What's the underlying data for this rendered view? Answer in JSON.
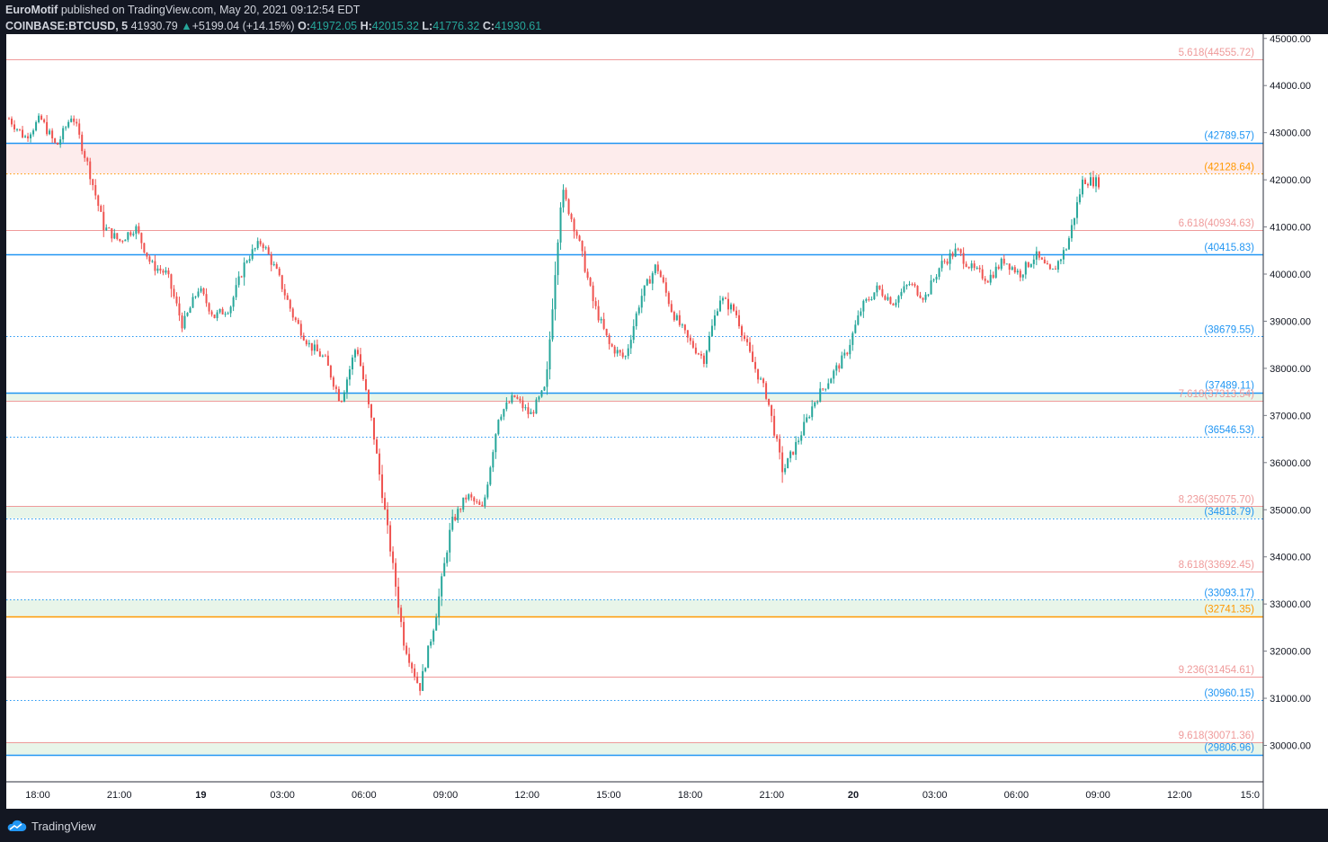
{
  "header": {
    "author": "EuroMotif",
    "published_text": "published on TradingView.com, May 20, 2021 09:12:54 EDT",
    "symbol": "COINBASE:BTCUSD, 5",
    "last_price": "41930.79",
    "change": "+5199.04 (+14.15%)",
    "open_label": "O:",
    "open": "41972.05",
    "high_label": "H:",
    "high": "42015.32",
    "low_label": "L:",
    "low": "41776.32",
    "close_label": "C:",
    "close": "41930.61"
  },
  "footer": {
    "brand": "TradingView"
  },
  "colors": {
    "background": "#131722",
    "plot_background": "#ffffff",
    "up_candle": "#26a69a",
    "down_candle": "#ef5350",
    "blue_level": "#2196f3",
    "orange_level": "#ff9800",
    "red_level": "#ef9a9a",
    "zone_green": "#e8f5e9",
    "zone_red": "#fdecec"
  },
  "chart_data": {
    "type": "candlestick",
    "timeframe": "5",
    "y_axis": {
      "range": [
        29800,
        45000
      ],
      "ticks": [
        "30000.00",
        "31000.00",
        "32000.00",
        "33000.00",
        "34000.00",
        "35000.00",
        "36000.00",
        "37000.00",
        "38000.00",
        "39000.00",
        "40000.00",
        "41000.00",
        "42000.00",
        "43000.00",
        "44000.00",
        "45000.00"
      ]
    },
    "x_axis": {
      "ticks": [
        "18:00",
        "21:00",
        "19",
        "03:00",
        "06:00",
        "09:00",
        "12:00",
        "15:00",
        "18:00",
        "21:00",
        "20",
        "03:00",
        "06:00",
        "09:00",
        "12:00",
        "15:0"
      ]
    },
    "levels": [
      {
        "label": "5.618(44555.72)",
        "value": 44555.72,
        "color": "red",
        "style": "solid"
      },
      {
        "label": "(42789.57)",
        "value": 42789.57,
        "color": "blue",
        "style": "solid"
      },
      {
        "label": "(42128.64)",
        "value": 42128.64,
        "color": "orange",
        "style": "dotted"
      },
      {
        "label": "6.618(40934.63)",
        "value": 40934.63,
        "color": "red",
        "style": "solid"
      },
      {
        "label": "(40415.83)",
        "value": 40415.83,
        "color": "blue",
        "style": "solid"
      },
      {
        "label": "(38679.55)",
        "value": 38679.55,
        "color": "blue",
        "style": "dotted"
      },
      {
        "label": "(37489.11)",
        "value": 37489.11,
        "color": "blue",
        "style": "solid"
      },
      {
        "label": "7.618(37313.54)",
        "value": 37313.54,
        "color": "red",
        "style": "solid"
      },
      {
        "label": "(36546.53)",
        "value": 36546.53,
        "color": "blue",
        "style": "dotted"
      },
      {
        "label": "8.236(35075.70)",
        "value": 35075.7,
        "color": "red",
        "style": "solid"
      },
      {
        "label": "(34818.79)",
        "value": 34818.79,
        "color": "blue",
        "style": "dotted"
      },
      {
        "label": "8.618(33692.45)",
        "value": 33692.45,
        "color": "red",
        "style": "solid"
      },
      {
        "label": "(33093.17)",
        "value": 33093.17,
        "color": "blue",
        "style": "dotted"
      },
      {
        "label": "(32741.35)",
        "value": 32741.35,
        "color": "orange",
        "style": "solid"
      },
      {
        "label": "9.236(31454.61)",
        "value": 31454.61,
        "color": "red",
        "style": "solid"
      },
      {
        "label": "(30960.15)",
        "value": 30960.15,
        "color": "blue",
        "style": "dotted"
      },
      {
        "label": "9.618(30071.36)",
        "value": 30071.36,
        "color": "red",
        "style": "solid"
      },
      {
        "label": "(29806.96)",
        "value": 29806.96,
        "color": "blue",
        "style": "solid"
      }
    ],
    "zones": [
      {
        "from": 42128.64,
        "to": 42789.57,
        "color": "red"
      },
      {
        "from": 37313.54,
        "to": 37489.11,
        "color": "green"
      },
      {
        "from": 34818.79,
        "to": 35075.7,
        "color": "green"
      },
      {
        "from": 32741.35,
        "to": 33093.17,
        "color": "green"
      },
      {
        "from": 29806.96,
        "to": 30071.36,
        "color": "green"
      }
    ],
    "price_path": [
      43300,
      42900,
      43300,
      42700,
      43400,
      42300,
      41000,
      40700,
      41000,
      40200,
      40000,
      38900,
      39700,
      39100,
      39300,
      40300,
      40700,
      40000,
      39100,
      38500,
      38200,
      37300,
      38500,
      36800,
      34500,
      32200,
      31200,
      32700,
      34700,
      35300,
      35000,
      37000,
      37400,
      37000,
      37600,
      41800,
      40800,
      39400,
      38500,
      38200,
      39500,
      40200,
      39200,
      38600,
      38200,
      39500,
      39200,
      38200,
      37400,
      35800,
      36500,
      37300,
      37800,
      38300,
      39300,
      39700,
      39400,
      39800,
      39500,
      40200,
      40500,
      40100,
      39900,
      40300,
      40000,
      40400,
      40000,
      40600,
      42000,
      41950
    ]
  }
}
